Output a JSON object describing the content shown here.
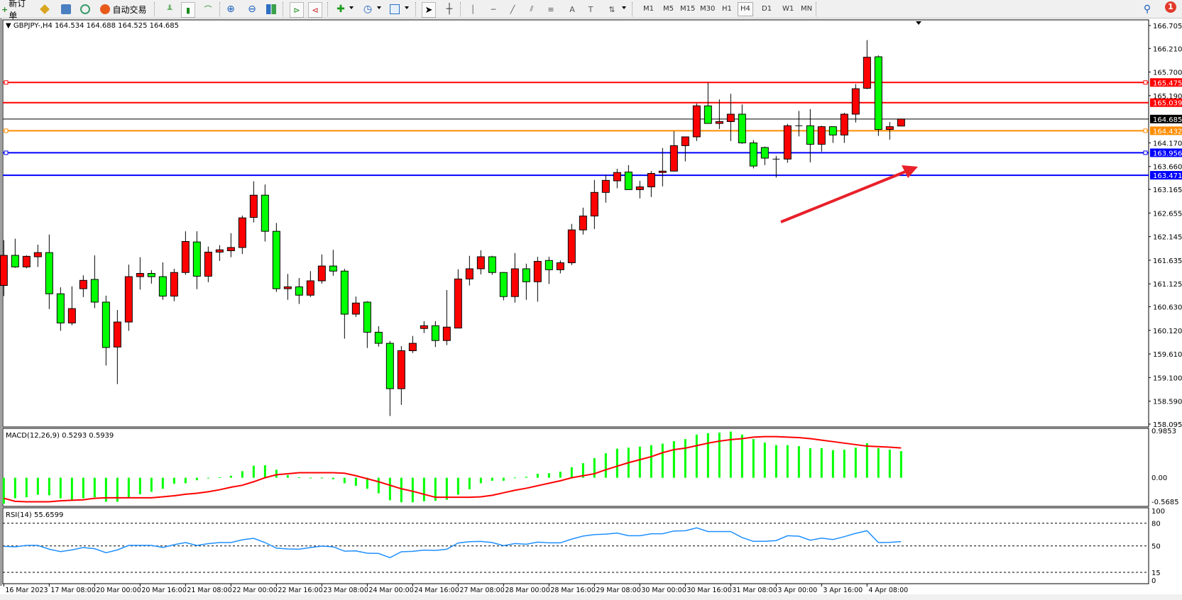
{
  "toolbar": {
    "new_order": "新订单",
    "auto_trade": "自动交易",
    "periods": [
      "M1",
      "M5",
      "M15",
      "M30",
      "H1",
      "H4",
      "D1",
      "W1",
      "MN"
    ],
    "active_period": "H4",
    "notification_count": "1",
    "icons": [
      "new-order-icon",
      "market-watch-icon",
      "data-window-icon",
      "signals-icon",
      "auto-trade-icon",
      "bar-chart-icon",
      "candlestick-icon",
      "line-chart-icon",
      "zoom-in-icon",
      "zoom-out-icon",
      "tile-windows-icon",
      "autoscroll-icon",
      "chart-shift-icon",
      "indicators-icon",
      "periods-icon",
      "templates-icon",
      "cursor-icon",
      "crosshair-icon",
      "vertical-line-icon",
      "horizontal-line-icon",
      "trendline-icon",
      "equidistant-channel-icon",
      "fibonacci-icon",
      "text-icon",
      "text-label-icon",
      "arrows-icon",
      "search-icon",
      "notification-icon"
    ]
  },
  "chart": {
    "symbol": "GBPJPY-,H4",
    "ohlc": "164.534 164.688 164.525 164.685",
    "bull_color": "#ff0000",
    "bear_color": "#00ff00",
    "price_ticks": [
      "166.705",
      "166.210",
      "165.700",
      "165.190",
      "164.170",
      "163.660",
      "163.165",
      "162.655",
      "162.145",
      "161.635",
      "161.125",
      "160.630",
      "160.120",
      "159.610",
      "159.100",
      "158.590",
      "158.095"
    ],
    "levels": [
      {
        "price": 165.475,
        "label": "165.475",
        "color": "#ff0000",
        "marker": true
      },
      {
        "price": 165.039,
        "label": "165.039",
        "color": "#ff0000",
        "marker": false
      },
      {
        "price": 164.685,
        "label": "164.685",
        "color": "#000000",
        "marker": false
      },
      {
        "price": 164.432,
        "label": "164.432",
        "color": "#ff8c00",
        "marker": true
      },
      {
        "price": 163.956,
        "label": "163.956",
        "color": "#0000ff",
        "marker": true
      },
      {
        "price": 163.471,
        "label": "163.471",
        "color": "#0000ff",
        "marker": false
      }
    ],
    "time_labels": [
      "16 Mar 2023",
      "17 Mar 08:00",
      "20 Mar 00:00",
      "20 Mar 16:00",
      "21 Mar 08:00",
      "22 Mar 00:00",
      "22 Mar 16:00",
      "23 Mar 08:00",
      "24 Mar 00:00",
      "24 Mar 16:00",
      "27 Mar 08:00",
      "28 Mar 00:00",
      "28 Mar 16:00",
      "29 Mar 08:00",
      "30 Mar 00:00",
      "30 Mar 16:00",
      "31 Mar 08:00",
      "3 Apr 00:00",
      "3 Apr 16:00",
      "4 Apr 08:00"
    ],
    "candles_ohlc": [
      [
        161.09,
        162.07,
        160.86,
        161.74
      ],
      [
        161.74,
        162.1,
        161.47,
        161.49
      ],
      [
        161.49,
        161.74,
        161.46,
        161.72
      ],
      [
        161.71,
        161.97,
        161.49,
        161.8
      ],
      [
        161.8,
        162.19,
        160.58,
        160.91
      ],
      [
        160.91,
        161.05,
        160.11,
        160.28
      ],
      [
        160.28,
        161.07,
        160.23,
        160.59
      ],
      [
        161.02,
        161.31,
        160.84,
        161.2
      ],
      [
        161.22,
        161.74,
        160.6,
        160.73
      ],
      [
        160.73,
        160.87,
        159.36,
        159.75
      ],
      [
        159.76,
        160.56,
        158.96,
        160.3
      ],
      [
        160.3,
        161.54,
        160.11,
        161.28
      ],
      [
        161.28,
        161.7,
        161.0,
        161.35
      ],
      [
        161.35,
        161.42,
        161.13,
        161.28
      ],
      [
        161.28,
        161.59,
        160.78,
        160.86
      ],
      [
        160.86,
        161.45,
        160.75,
        161.37
      ],
      [
        161.37,
        162.26,
        161.32,
        162.04
      ],
      [
        162.03,
        162.26,
        161.01,
        161.29
      ],
      [
        161.29,
        161.93,
        161.16,
        161.81
      ],
      [
        161.81,
        161.96,
        161.62,
        161.86
      ],
      [
        161.84,
        162.22,
        161.7,
        161.91
      ],
      [
        161.91,
        162.6,
        161.77,
        162.55
      ],
      [
        162.56,
        163.34,
        162.45,
        163.04
      ],
      [
        163.04,
        163.27,
        162.04,
        162.26
      ],
      [
        162.26,
        162.44,
        160.95,
        161.02
      ],
      [
        161.02,
        161.34,
        160.78,
        161.06
      ],
      [
        161.06,
        161.25,
        160.69,
        160.88
      ],
      [
        160.88,
        161.4,
        160.84,
        161.19
      ],
      [
        161.19,
        161.76,
        161.13,
        161.51
      ],
      [
        161.51,
        161.86,
        161.3,
        161.4
      ],
      [
        161.4,
        161.45,
        159.94,
        160.47
      ],
      [
        160.47,
        160.85,
        160.41,
        160.71
      ],
      [
        160.73,
        160.75,
        159.74,
        160.08
      ],
      [
        160.08,
        160.21,
        159.77,
        159.84
      ],
      [
        159.84,
        159.89,
        158.27,
        158.86
      ],
      [
        158.86,
        159.78,
        158.51,
        159.68
      ],
      [
        159.68,
        160.0,
        159.63,
        159.84
      ],
      [
        160.16,
        160.32,
        160.06,
        160.22
      ],
      [
        160.22,
        160.32,
        159.76,
        159.9
      ],
      [
        159.9,
        160.99,
        159.8,
        160.19
      ],
      [
        160.17,
        161.44,
        160.17,
        161.23
      ],
      [
        161.23,
        161.73,
        161.09,
        161.45
      ],
      [
        161.45,
        161.85,
        161.33,
        161.71
      ],
      [
        161.71,
        161.73,
        161.32,
        161.37
      ],
      [
        161.37,
        161.38,
        160.77,
        160.85
      ],
      [
        160.85,
        161.79,
        160.72,
        161.45
      ],
      [
        161.45,
        161.56,
        160.78,
        161.17
      ],
      [
        161.17,
        161.71,
        160.74,
        161.61
      ],
      [
        161.63,
        161.71,
        161.12,
        161.43
      ],
      [
        161.43,
        161.63,
        161.35,
        161.58
      ],
      [
        161.58,
        162.42,
        161.53,
        162.29
      ],
      [
        162.29,
        162.77,
        162.19,
        162.59
      ],
      [
        162.59,
        163.37,
        162.31,
        163.1
      ],
      [
        163.1,
        163.48,
        162.88,
        163.36
      ],
      [
        163.35,
        163.61,
        163.19,
        163.53
      ],
      [
        163.54,
        163.69,
        163.16,
        163.16
      ],
      [
        163.16,
        163.35,
        162.97,
        163.22
      ],
      [
        163.22,
        163.56,
        163.0,
        163.51
      ],
      [
        163.53,
        164.06,
        163.23,
        163.56
      ],
      [
        163.56,
        164.42,
        163.56,
        164.11
      ],
      [
        164.11,
        164.3,
        163.77,
        164.3
      ],
      [
        164.3,
        165.02,
        164.21,
        164.97
      ],
      [
        164.97,
        165.47,
        164.59,
        164.59
      ],
      [
        164.59,
        165.11,
        164.47,
        164.63
      ],
      [
        164.63,
        165.23,
        164.21,
        164.79
      ],
      [
        164.79,
        165.0,
        164.15,
        164.17
      ],
      [
        164.17,
        164.23,
        163.62,
        163.67
      ],
      [
        164.07,
        164.09,
        163.69,
        163.84
      ],
      [
        163.82,
        163.89,
        163.42,
        163.82
      ],
      [
        163.82,
        164.58,
        163.74,
        164.54
      ],
      [
        164.54,
        164.86,
        164.31,
        164.54
      ],
      [
        164.54,
        164.9,
        163.75,
        164.14
      ],
      [
        164.14,
        164.54,
        163.98,
        164.52
      ],
      [
        164.52,
        164.52,
        164.17,
        164.34
      ],
      [
        164.34,
        164.82,
        164.17,
        164.79
      ],
      [
        164.79,
        165.44,
        164.61,
        165.34
      ],
      [
        165.35,
        166.39,
        165.33,
        166.02
      ],
      [
        166.03,
        166.06,
        164.32,
        164.46
      ],
      [
        164.46,
        164.62,
        164.24,
        164.52
      ],
      [
        164.534,
        164.688,
        164.525,
        164.685
      ]
    ],
    "annotation": {
      "type": "arrow",
      "color": "#e8202a"
    }
  },
  "macd": {
    "label": "MACD(12,26,9) 0.5293 0.5939",
    "scale": [
      "0.9853",
      "0.00",
      "-0.5685"
    ],
    "hist_color": "#00ff00",
    "signal_color": "#ff0000",
    "histogram": [
      -0.52,
      -0.41,
      -0.39,
      -0.34,
      -0.35,
      -0.41,
      -0.44,
      -0.41,
      -0.39,
      -0.48,
      -0.48,
      -0.39,
      -0.33,
      -0.28,
      -0.22,
      -0.12,
      -0.11,
      -0.05,
      0.0,
      0.01,
      0.04,
      0.13,
      0.24,
      0.25,
      0.16,
      0.05,
      0.01,
      -0.01,
      -0.005,
      -0.03,
      -0.11,
      -0.16,
      -0.22,
      -0.31,
      -0.45,
      -0.49,
      -0.49,
      -0.47,
      -0.46,
      -0.44,
      -0.34,
      -0.23,
      -0.11,
      -0.06,
      -0.06,
      0.005,
      0.02,
      0.08,
      0.09,
      0.12,
      0.21,
      0.29,
      0.39,
      0.49,
      0.58,
      0.6,
      0.62,
      0.65,
      0.68,
      0.73,
      0.77,
      0.86,
      0.89,
      0.9,
      0.92,
      0.86,
      0.77,
      0.7,
      0.65,
      0.65,
      0.63,
      0.59,
      0.59,
      0.55,
      0.56,
      0.6,
      0.69,
      0.59,
      0.56,
      0.53
    ],
    "signal": [
      -0.41,
      -0.47,
      -0.48,
      -0.48,
      -0.48,
      -0.46,
      -0.45,
      -0.44,
      -0.41,
      -0.4,
      -0.4,
      -0.4,
      -0.4,
      -0.4,
      -0.38,
      -0.36,
      -0.33,
      -0.31,
      -0.28,
      -0.24,
      -0.19,
      -0.15,
      -0.08,
      0.0,
      0.06,
      0.08,
      0.1,
      0.1,
      0.1,
      0.1,
      0.09,
      0.04,
      -0.02,
      -0.08,
      -0.15,
      -0.22,
      -0.27,
      -0.33,
      -0.39,
      -0.39,
      -0.39,
      -0.39,
      -0.38,
      -0.35,
      -0.3,
      -0.25,
      -0.21,
      -0.16,
      -0.11,
      -0.06,
      0.0,
      0.04,
      0.08,
      0.16,
      0.23,
      0.3,
      0.36,
      0.42,
      0.5,
      0.56,
      0.59,
      0.64,
      0.69,
      0.73,
      0.76,
      0.78,
      0.81,
      0.82,
      0.82,
      0.81,
      0.8,
      0.78,
      0.75,
      0.72,
      0.69,
      0.66,
      0.63,
      0.62,
      0.61,
      0.594
    ]
  },
  "rsi": {
    "label": "RSI(14) 55.6599",
    "scale": [
      "100",
      "80",
      "50",
      "15",
      "0"
    ],
    "line_color": "#1e90ff",
    "values": [
      49.4,
      48.8,
      50.6,
      50.6,
      45.6,
      42.5,
      44.7,
      47.8,
      46.3,
      41,
      44.7,
      50.6,
      50.6,
      50.6,
      48,
      51.6,
      54.4,
      50.6,
      53,
      54.4,
      54.4,
      58,
      60,
      54.4,
      47,
      46,
      45.6,
      47.8,
      49.7,
      48.8,
      43,
      43.4,
      40.3,
      40,
      34.4,
      42.2,
      42.8,
      44.4,
      44,
      45.6,
      53.8,
      55.6,
      55.9,
      54.4,
      50.3,
      53.1,
      52.2,
      55,
      54,
      54,
      59,
      63,
      65,
      65.6,
      66.9,
      63.4,
      63.4,
      66,
      66,
      69.7,
      70,
      73.8,
      69,
      69,
      69,
      61,
      56,
      56,
      57,
      63.4,
      62.8,
      57.5,
      60.3,
      58.4,
      62.2,
      66.6,
      70,
      54.4,
      54.7,
      55.66
    ]
  }
}
